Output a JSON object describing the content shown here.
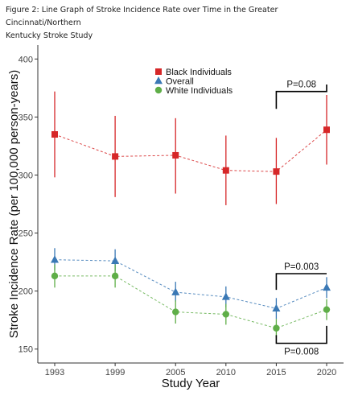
{
  "figure_title_lines": [
    "Figure 2: Line Graph of Stroke Incidence Rate over Time in the Greater Cincinnati/Northern",
    "Kentucky Stroke Study"
  ],
  "chart_data": {
    "type": "line",
    "title": "Figure 2: Line Graph of Stroke Incidence Rate over Time in the Greater Cincinnati/Northern Kentucky Stroke Study",
    "xlabel": "Study Year",
    "ylabel": "Stroke Incidence Rate (per 100,000 person-years)",
    "x": [
      1993,
      1999,
      2005,
      2010,
      2015,
      2020
    ],
    "xticks": [
      "1993",
      "1999",
      "2005",
      "2010",
      "2015",
      "2020"
    ],
    "ylim": [
      138,
      412
    ],
    "yticks": [
      150,
      200,
      250,
      300,
      350,
      400
    ],
    "grid": false,
    "legend_position": "top-center",
    "series": [
      {
        "name": "Black Individuals",
        "marker": "square",
        "color": "#d62728",
        "values": [
          335,
          316,
          317,
          304,
          303,
          339
        ],
        "lower": [
          298,
          281,
          284,
          274,
          275,
          309
        ],
        "upper": [
          372,
          351,
          349,
          334,
          332,
          369
        ]
      },
      {
        "name": "Overall",
        "marker": "triangle",
        "color": "#3a78b5",
        "values": [
          227,
          226,
          199,
          195,
          185,
          203
        ],
        "lower": [
          218,
          217,
          191,
          186,
          176,
          194
        ],
        "upper": [
          237,
          236,
          208,
          204,
          194,
          212
        ]
      },
      {
        "name": "White Individuals",
        "marker": "circle",
        "color": "#5fae48",
        "values": [
          213,
          213,
          182,
          180,
          168,
          184
        ],
        "lower": [
          203,
          203,
          172,
          171,
          160,
          175
        ],
        "upper": [
          223,
          223,
          192,
          189,
          176,
          193
        ]
      }
    ],
    "annotations": [
      {
        "text": "P=0.08",
        "x_from": 2015,
        "x_to": 2020,
        "bracket_y": 372,
        "drop_to": [
          357,
          378
        ],
        "side": "above"
      },
      {
        "text": "P=0.003",
        "x_from": 2015,
        "x_to": 2020,
        "bracket_y": 215,
        "drop_to": [
          201,
          215
        ],
        "side": "above"
      },
      {
        "text": "P=0.008",
        "x_from": 2015,
        "x_to": 2020,
        "bracket_y": 155,
        "drop_to": [
          162,
          170
        ],
        "side": "below"
      }
    ]
  }
}
